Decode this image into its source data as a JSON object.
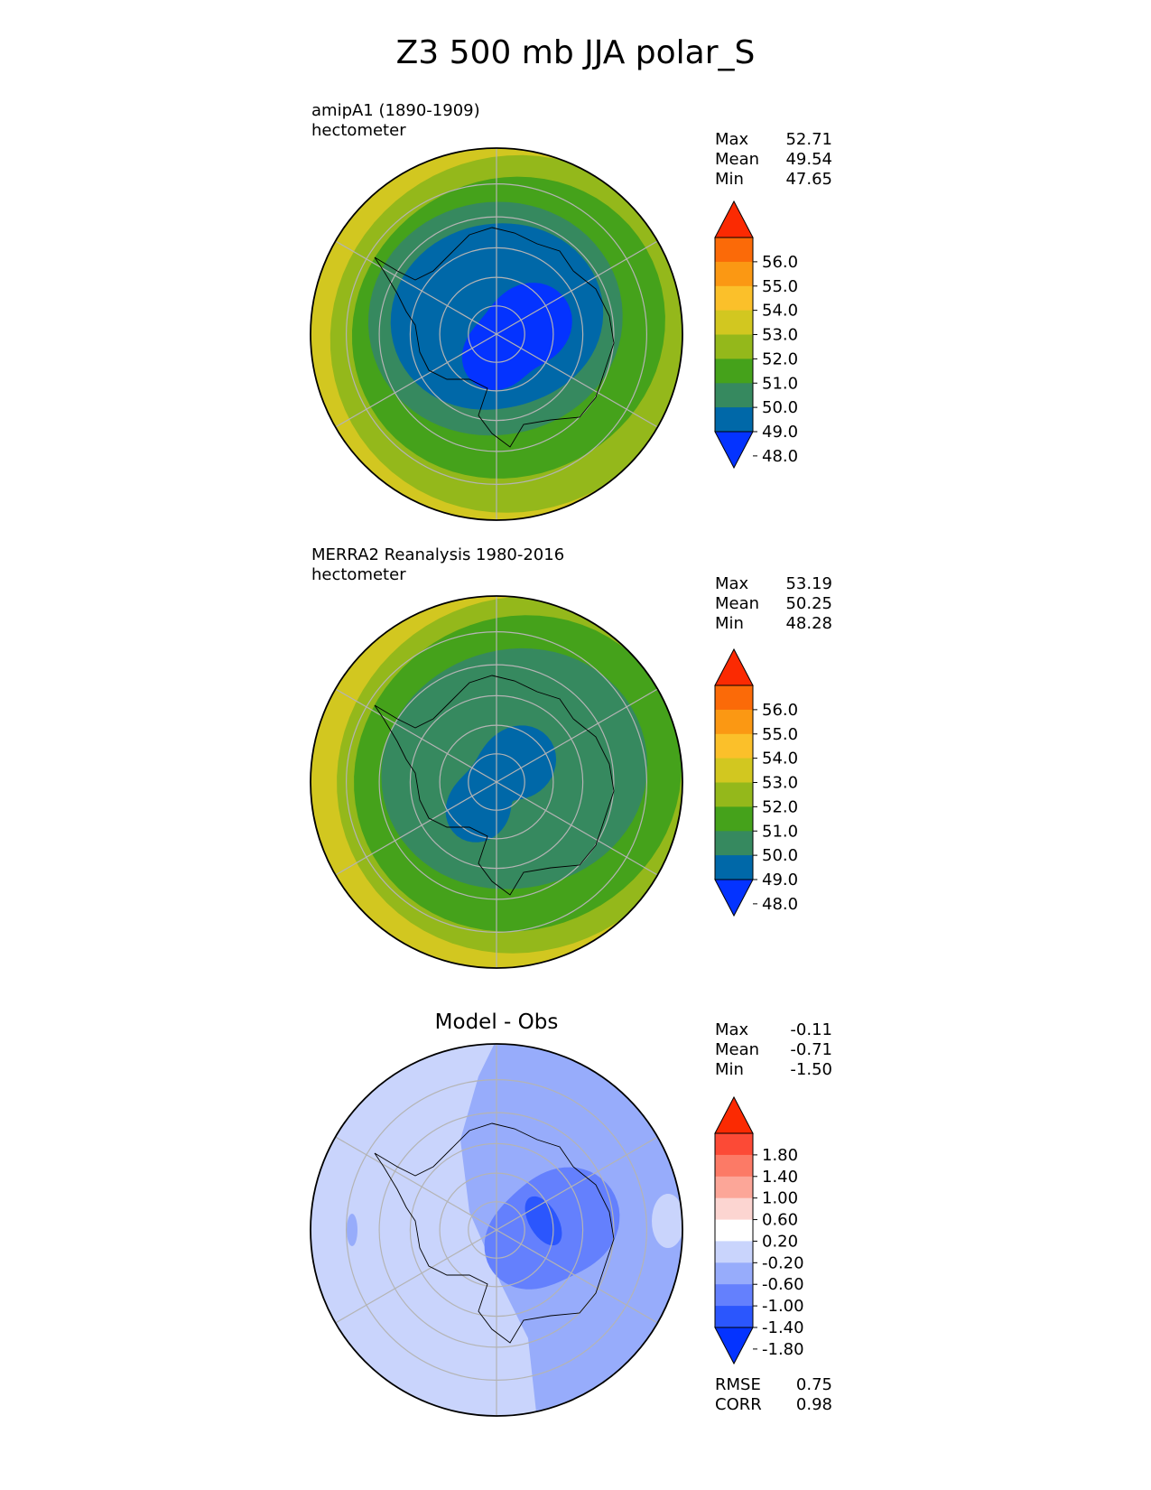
{
  "title": "Z3 500 mb JJA polar_S",
  "colors": {
    "fill_levels": [
      "#0433ff",
      "#0068a8",
      "#36895f",
      "#45a21b",
      "#94b81b",
      "#d2c720",
      "#fbc02a",
      "#fb9813",
      "#fb6a08",
      "#fb2a02"
    ],
    "diff_levels": [
      "#0433ff",
      "#2b56fd",
      "#6480fd",
      "#97acfb",
      "#c9d4fc",
      "#ffffff",
      "#fcd5d1",
      "#fca698",
      "#fc7a66",
      "#fc4a36",
      "#fb2a02"
    ],
    "grid": "#b4b4b4",
    "coast": "#000000"
  },
  "panels": [
    {
      "id": "model",
      "subtitle_line1": "amipA1 (1890-1909)",
      "subtitle_line2": "hectometer",
      "stats": {
        "max_label": "Max",
        "max": "52.71",
        "mean_label": "Mean",
        "mean": "49.54",
        "min_label": "Min",
        "min": "47.65"
      },
      "colorbar_ticks": [
        "56.0",
        "55.0",
        "54.0",
        "53.0",
        "52.0",
        "51.0",
        "50.0",
        "49.0",
        "48.0"
      ]
    },
    {
      "id": "obs",
      "subtitle_line1": "MERRA2 Reanalysis 1980-2016",
      "subtitle_line2": "hectometer",
      "stats": {
        "max_label": "Max",
        "max": "53.19",
        "mean_label": "Mean",
        "mean": "50.25",
        "min_label": "Min",
        "min": "48.28"
      },
      "colorbar_ticks": [
        "56.0",
        "55.0",
        "54.0",
        "53.0",
        "52.0",
        "51.0",
        "50.0",
        "49.0",
        "48.0"
      ]
    },
    {
      "id": "diff",
      "subtitle_line1": "Model - Obs",
      "stats": {
        "max_label": "Max",
        "max": "-0.11",
        "mean_label": "Mean",
        "mean": "-0.71",
        "min_label": "Min",
        "min": "-1.50"
      },
      "colorbar_ticks": [
        "1.80",
        "1.40",
        "1.00",
        "0.60",
        "0.20",
        "-0.20",
        "-0.60",
        "-1.00",
        "-1.40",
        "-1.80"
      ],
      "metrics": {
        "rmse_label": "RMSE",
        "rmse": "0.75",
        "corr_label": "CORR",
        "corr": "0.98"
      }
    }
  ],
  "chart_data": [
    {
      "type": "heatmap",
      "projection": "south polar stereographic",
      "title": "amipA1 (1890-1909)",
      "units": "hectometer",
      "levels": [
        48,
        49,
        50,
        51,
        52,
        53,
        54,
        55,
        56
      ],
      "extend": "both",
      "approx_contour_latitudes": {
        "48": -72,
        "49": -58,
        "50": -49,
        "51": -44,
        "52": -41
      },
      "max": 52.71,
      "mean": 49.54,
      "min": 47.65
    },
    {
      "type": "heatmap",
      "projection": "south polar stereographic",
      "title": "MERRA2 Reanalysis 1980-2016",
      "units": "hectometer",
      "levels": [
        48,
        49,
        50,
        51,
        52,
        53,
        54,
        55,
        56
      ],
      "extend": "both",
      "approx_contour_latitudes": {
        "49": -73,
        "50": -54,
        "51": -46,
        "52": -42
      },
      "max": 53.19,
      "mean": 50.25,
      "min": 48.28
    },
    {
      "type": "heatmap",
      "projection": "south polar stereographic",
      "title": "Model - Obs",
      "units": "hectometer",
      "levels": [
        -1.8,
        -1.4,
        -1.0,
        -0.6,
        -0.2,
        0.2,
        0.6,
        1.0,
        1.4,
        1.8
      ],
      "extend": "both",
      "max": -0.11,
      "mean": -0.71,
      "min": -1.5,
      "rmse": 0.75,
      "corr": 0.98
    }
  ]
}
